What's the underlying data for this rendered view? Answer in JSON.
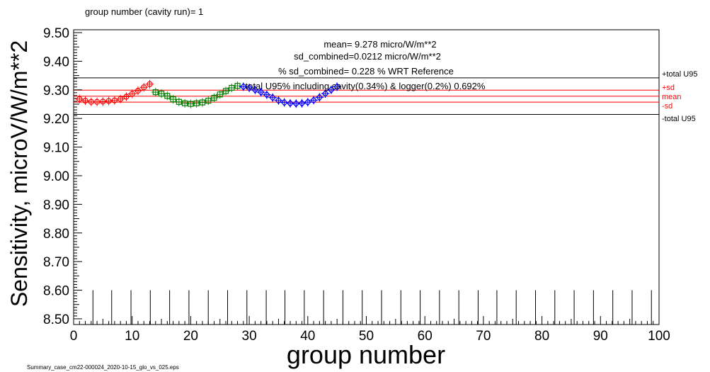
{
  "header": {
    "group_label": "group number (cavity run)=  1"
  },
  "footer": {
    "file_label": "Summary_case_cm22-000024_2020-10-15_glo_vs_025.eps"
  },
  "stats": {
    "mean": "mean= 9.278 micro/W/m**2",
    "sd": "sd_combined=0.0212 micro/W/m**2",
    "pct": "% sd_combined= 0.228 % WRT Reference",
    "total": "total U95% including cavity(0.34%) & logger(0.2%) 0.692%"
  },
  "line_labels": {
    "upper_u95": "+total U95",
    "plus_sd": "+sd",
    "mean": "mean",
    "minus_sd": "-sd",
    "lower_u95": "-total U95"
  },
  "colors": {
    "mean_lines": "#ff0000",
    "u95_lines": "#000000",
    "series_red": "#ff0000",
    "series_green": "#008000",
    "series_blue": "#0000ff"
  },
  "chart_data": {
    "type": "scatter",
    "xlabel": "group number",
    "ylabel": "Sensitivity, microV/W/m**2",
    "xlim": [
      0,
      100
    ],
    "ylim": [
      8.48,
      9.51
    ],
    "x_ticks": [
      "0",
      "10",
      "20",
      "30",
      "40",
      "50",
      "60",
      "70",
      "80",
      "90",
      "100"
    ],
    "y_ticks": [
      "8.50",
      "8.60",
      "8.70",
      "8.80",
      "8.90",
      "9.00",
      "9.10",
      "9.20",
      "9.30",
      "9.40",
      "9.50"
    ],
    "reference_lines": {
      "upper_u95": 9.342,
      "plus_sd": 9.299,
      "mean": 9.278,
      "minus_sd": 9.257,
      "lower_u95": 9.214
    },
    "group_markers_x": [
      3.3,
      6.5,
      9.8,
      13.1,
      16.4,
      19.7,
      23.0,
      26.3,
      29.6,
      32.9,
      36.1,
      39.4,
      42.7,
      46.0,
      49.3,
      52.6,
      55.9,
      59.2,
      62.5,
      65.8,
      69.1,
      72.3,
      75.6,
      78.9,
      82.2,
      85.5,
      88.8,
      92.1,
      95.4,
      98.7
    ],
    "series": [
      {
        "marker": "circle",
        "color": "red",
        "x": [
          1,
          2,
          3,
          4,
          5,
          6,
          7,
          8,
          9,
          10,
          11,
          12,
          13
        ],
        "y": [
          9.268,
          9.262,
          9.258,
          9.258,
          9.259,
          9.261,
          9.263,
          9.268,
          9.276,
          9.286,
          9.297,
          9.309,
          9.32
        ]
      },
      {
        "marker": "square",
        "color": "green",
        "x": [
          14,
          15,
          16,
          17,
          18,
          19,
          20,
          21,
          22,
          23,
          24,
          25,
          26,
          27,
          28
        ],
        "y": [
          9.292,
          9.287,
          9.279,
          9.267,
          9.258,
          9.253,
          9.251,
          9.253,
          9.256,
          9.262,
          9.272,
          9.284,
          9.296,
          9.307,
          9.314
        ]
      },
      {
        "marker": "diamond",
        "color": "blue",
        "x": [
          29,
          30,
          31,
          32,
          33,
          34,
          35,
          36,
          37,
          38,
          39,
          40,
          41,
          42,
          43,
          44,
          45
        ],
        "y": [
          9.311,
          9.307,
          9.3,
          9.292,
          9.283,
          9.273,
          9.263,
          9.256,
          9.253,
          9.252,
          9.253,
          9.257,
          9.264,
          9.274,
          9.287,
          9.3,
          9.311
        ]
      }
    ]
  }
}
